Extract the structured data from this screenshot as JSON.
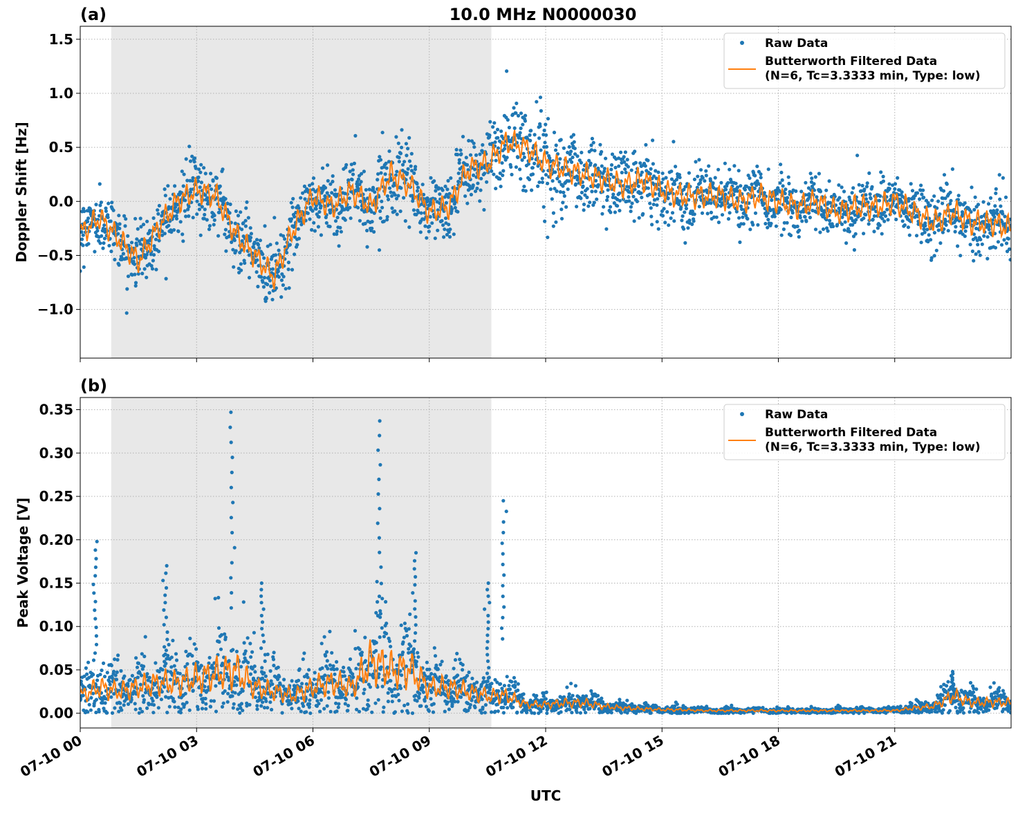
{
  "title": "10.0 MHz N0000030",
  "chart_data": [
    {
      "type": "scatter",
      "panel_label": "(a)",
      "ylabel": "Doppler Shift [Hz]",
      "xlabel": "",
      "xlim_hours": [
        0,
        24
      ],
      "ylim": [
        -1.45,
        1.62
      ],
      "yticks": [
        -1.0,
        -0.5,
        0.0,
        0.5,
        1.0,
        1.5
      ],
      "ytick_labels": [
        "−1.0",
        "−0.5",
        "0.0",
        "0.5",
        "1.0",
        "1.5"
      ],
      "grid": true,
      "legend_position": "top-right",
      "shaded_interval_hours": [
        0.8,
        10.6
      ],
      "shade_color": "#e8e8e8",
      "series": [
        {
          "name": "Raw Data",
          "kind": "scatter",
          "color": "#1f77b4",
          "approx_spread": [
            0.25,
            0.25,
            0.25,
            0.3,
            0.3,
            0.3,
            0.3,
            0.3,
            0.3,
            0.3,
            0.35,
            0.3,
            0.3,
            0.3,
            0.3,
            0.3,
            0.3,
            0.3,
            0.3,
            0.3,
            0.3,
            0.35,
            0.4,
            0.45,
            0.45,
            0.4,
            0.35,
            0.3,
            0.3,
            0.3,
            0.3,
            0.25,
            0.25,
            0.25,
            0.25,
            0.25,
            0.25,
            0.25,
            0.25,
            0.25,
            0.25,
            0.25,
            0.25,
            0.25,
            0.3,
            0.3,
            0.3,
            0.3,
            0.3
          ]
        },
        {
          "name": "Butterworth Filtered Data\n(N=6, Tc=3.3333 min, Type: low)",
          "kind": "line",
          "color": "#ff7f0e",
          "x_hours": [
            0,
            0.5,
            1,
            1.5,
            2,
            2.5,
            3,
            3.5,
            4,
            4.5,
            5,
            5.5,
            6,
            6.5,
            7,
            7.5,
            8,
            8.5,
            9,
            9.5,
            10,
            10.5,
            11,
            11.5,
            12,
            12.5,
            13,
            13.5,
            14,
            14.5,
            15,
            15.5,
            16,
            16.5,
            17,
            17.5,
            18,
            18.5,
            19,
            19.5,
            20,
            20.5,
            21,
            21.5,
            22,
            22.5,
            23,
            23.5,
            24
          ],
          "values": [
            -0.3,
            -0.15,
            -0.35,
            -0.55,
            -0.25,
            0.0,
            0.1,
            0.05,
            -0.3,
            -0.5,
            -0.7,
            -0.25,
            0.05,
            -0.05,
            0.1,
            -0.05,
            0.25,
            0.15,
            -0.1,
            -0.05,
            0.3,
            0.35,
            0.55,
            0.5,
            0.35,
            0.3,
            0.25,
            0.2,
            0.15,
            0.2,
            0.1,
            0.05,
            0.05,
            0.05,
            0.0,
            0.05,
            0.0,
            -0.05,
            0.0,
            -0.1,
            -0.05,
            -0.05,
            0.0,
            -0.1,
            -0.2,
            -0.1,
            -0.2,
            -0.2,
            -0.25
          ]
        }
      ]
    },
    {
      "type": "scatter",
      "panel_label": "(b)",
      "ylabel": "Peak Voltage [V]",
      "xlabel": "UTC",
      "xlim_hours": [
        0,
        24
      ],
      "ylim": [
        -0.017,
        0.364
      ],
      "yticks": [
        0.0,
        0.05,
        0.1,
        0.15,
        0.2,
        0.25,
        0.3,
        0.35
      ],
      "ytick_labels": [
        "0.00",
        "0.05",
        "0.10",
        "0.15",
        "0.20",
        "0.25",
        "0.30",
        "0.35"
      ],
      "xticks_hours": [
        0,
        3,
        6,
        9,
        12,
        15,
        18,
        21
      ],
      "xtick_labels": [
        "07-10 00",
        "07-10 03",
        "07-10 06",
        "07-10 09",
        "07-10 12",
        "07-10 15",
        "07-10 18",
        "07-10 21"
      ],
      "grid": true,
      "legend_position": "top-right",
      "shaded_interval_hours": [
        0.8,
        10.6
      ],
      "shade_color": "#e8e8e8",
      "series": [
        {
          "name": "Raw Data",
          "kind": "scatter",
          "color": "#1f77b4",
          "peaks": [
            [
              0.4,
              0.198
            ],
            [
              2.2,
              0.17
            ],
            [
              3.9,
              0.347
            ],
            [
              4.7,
              0.15
            ],
            [
              7.7,
              0.337
            ],
            [
              8.6,
              0.185
            ],
            [
              10.9,
              0.245
            ],
            [
              10.5,
              0.15
            ],
            [
              22.5,
              0.048
            ]
          ]
        },
        {
          "name": "Butterworth Filtered Data\n(N=6, Tc=3.3333 min, Type: low)",
          "kind": "line",
          "color": "#ff7f0e",
          "x_hours": [
            0,
            0.5,
            1,
            1.5,
            2,
            2.5,
            3,
            3.5,
            4,
            4.5,
            5,
            5.5,
            6,
            6.5,
            7,
            7.5,
            8,
            8.5,
            9,
            9.5,
            10,
            10.5,
            11,
            11.5,
            12,
            12.5,
            13,
            13.5,
            14,
            14.5,
            15,
            15.5,
            16,
            16.5,
            17,
            17.5,
            18,
            18.5,
            19,
            19.5,
            20,
            20.5,
            21,
            21.5,
            22,
            22.5,
            23,
            23.5,
            24
          ],
          "values": [
            0.02,
            0.03,
            0.025,
            0.03,
            0.035,
            0.035,
            0.04,
            0.045,
            0.05,
            0.03,
            0.025,
            0.02,
            0.03,
            0.035,
            0.03,
            0.06,
            0.05,
            0.05,
            0.03,
            0.03,
            0.025,
            0.02,
            0.02,
            0.01,
            0.01,
            0.012,
            0.012,
            0.008,
            0.006,
            0.005,
            0.004,
            0.004,
            0.003,
            0.003,
            0.003,
            0.003,
            0.003,
            0.003,
            0.003,
            0.003,
            0.003,
            0.003,
            0.003,
            0.006,
            0.008,
            0.02,
            0.012,
            0.013,
            0.012
          ]
        }
      ]
    }
  ]
}
